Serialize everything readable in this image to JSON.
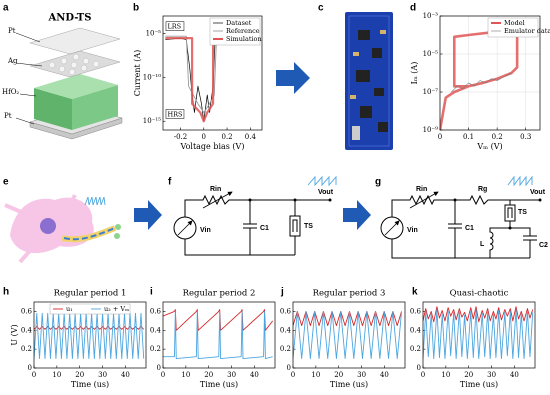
{
  "panel_labels": [
    "a",
    "b",
    "c",
    "d",
    "e",
    "f",
    "g",
    "h",
    "i",
    "j",
    "k"
  ],
  "a": {
    "title": "AND-TS",
    "layers": [
      "Pt",
      "Ag",
      "HfO₂",
      "Pt"
    ]
  },
  "f": {
    "labels": [
      "Rin",
      "Vin",
      "C1",
      "TS",
      "Vout"
    ]
  },
  "g": {
    "labels": [
      "Rin",
      "Rg",
      "Vin",
      "C1",
      "TS",
      "L",
      "C2",
      "Vout"
    ]
  },
  "chart_data": [
    {
      "type": "line",
      "log_y": true,
      "x_label": "Voltage bias (V)",
      "y_label": "Current (A)",
      "xlim": [
        -0.35,
        0.5
      ],
      "xticks": [
        -0.2,
        0,
        0.2,
        0.4
      ],
      "ylim": [
        1e-16,
        0.001
      ],
      "yticks": [
        {
          "value": 1e-05,
          "label": "10⁻⁵"
        },
        {
          "value": 1e-10,
          "label": "10⁻¹⁰"
        },
        {
          "value": 1e-15,
          "label": "10⁻¹⁵"
        }
      ],
      "annotations": [
        "LRS",
        "HRS"
      ],
      "legend": "upper right",
      "grid": false,
      "series": [
        {
          "name": "Dataset",
          "color": "#000000",
          "x": [
            -0.33,
            -0.2,
            -0.15,
            -0.12,
            -0.1,
            -0.08,
            -0.05,
            -0.02,
            0,
            0.03,
            0.05,
            0.08,
            0.1,
            0.2,
            0.45
          ],
          "values": [
            2e-06,
            3e-06,
            2e-06,
            1e-09,
            1e-12,
            1e-14,
            1e-11,
            1e-13,
            1e-15,
            1e-12,
            1e-14,
            1e-11,
            1e-05,
            1e-05,
            1e-05
          ]
        },
        {
          "name": "Reference",
          "color": "#999999",
          "x": [
            -0.33,
            -0.15,
            -0.13,
            -0.05,
            0,
            0.05,
            0.09,
            0.11,
            0.45
          ],
          "values": [
            5e-06,
            5e-06,
            1e-11,
            1e-13,
            1e-14,
            1e-13,
            1e-12,
            5e-06,
            5e-06
          ]
        },
        {
          "name": "Simulation",
          "color": "#e05555",
          "x": [
            -0.33,
            -0.1,
            -0.1,
            -0.03,
            0,
            0.03,
            0.08,
            0.08,
            0.48
          ],
          "values": [
            3e-06,
            3e-06,
            1e-13,
            1e-14,
            1e-15,
            1e-14,
            1e-13,
            1e-05,
            1e-05
          ]
        }
      ]
    },
    {
      "type": "line",
      "log_y": true,
      "x_label": "Vₘ (V)",
      "y_label": "Iₘ (A)",
      "xlim": [
        0,
        0.35
      ],
      "xticks": [
        0,
        0.1,
        0.2,
        0.3
      ],
      "ylim": [
        1e-09,
        0.001
      ],
      "yticks": [
        {
          "value": 1e-09,
          "label": "10⁻⁹"
        },
        {
          "value": 1e-07,
          "label": "10⁻⁷"
        },
        {
          "value": 1e-05,
          "label": "10⁻⁵"
        },
        {
          "value": 0.001,
          "label": "10⁻³"
        }
      ],
      "legend": "upper right",
      "grid": true,
      "series": [
        {
          "name": "Model",
          "color": "#e05555",
          "x": [
            0,
            0.02,
            0.05,
            0.1,
            0.15,
            0.2,
            0.25,
            0.27,
            0.27,
            0.3,
            0.32,
            0.3,
            0.2,
            0.1,
            0.05,
            0.05,
            0.1
          ],
          "values": [
            1e-09,
            5e-08,
            1e-07,
            2e-07,
            3e-07,
            5e-07,
            1e-06,
            2e-06,
            0.0001,
            0.0002,
            0.0003,
            0.00025,
            0.00015,
            0.0001,
            8e-05,
            2e-07,
            2e-07
          ]
        },
        {
          "name": "Emulator data",
          "color": "#777777",
          "x": [
            0.04,
            0.06,
            0.08,
            0.1,
            0.12,
            0.14,
            0.16,
            0.18,
            0.2,
            0.22,
            0.25
          ],
          "values": [
            1e-07,
            2e-07,
            1.5e-07,
            3e-07,
            2e-07,
            4e-07,
            3e-07,
            5e-07,
            4e-07,
            6e-07,
            1e-06
          ]
        }
      ]
    },
    {
      "type": "line",
      "title": "Regular period 1",
      "x_label": "Time (us)",
      "y_label": "U (V)",
      "xlim": [
        0,
        49
      ],
      "xticks": [
        0,
        10,
        20,
        30,
        40
      ],
      "ylim": [
        0,
        0.7
      ],
      "yticks": [
        0,
        0.2,
        0.4,
        0.6
      ],
      "legend": "upper center",
      "grid": false,
      "x": [
        0,
        1.2,
        2.4,
        3.6,
        4.8,
        6,
        7.2,
        8.4,
        9.6,
        10.8,
        12,
        13.2,
        14.4,
        15.6,
        16.8,
        18,
        19.2,
        20.4,
        21.6,
        22.8,
        24,
        25.2,
        26.4,
        27.6,
        28.8,
        30,
        31.2,
        32.4,
        33.6,
        34.8,
        36,
        37.2,
        38.4,
        39.6,
        40.8,
        42,
        43.2,
        44.4,
        45.6,
        46.8,
        48
      ],
      "series": [
        {
          "name": "u₁",
          "color": "#d62728",
          "values": [
            0.41,
            0.44,
            0.41,
            0.44,
            0.41,
            0.44,
            0.41,
            0.44,
            0.41,
            0.44,
            0.41,
            0.44,
            0.41,
            0.44,
            0.41,
            0.44,
            0.41,
            0.44,
            0.41,
            0.44,
            0.41,
            0.44,
            0.41,
            0.44,
            0.41,
            0.44,
            0.41,
            0.44,
            0.41,
            0.44,
            0.41,
            0.44,
            0.41,
            0.44,
            0.41,
            0.44,
            0.41,
            0.44,
            0.41,
            0.44,
            0.41
          ]
        },
        {
          "name": "u₂ + Vₘ",
          "color": "#4da6e0",
          "values": [
            0.1,
            0.58,
            0.1,
            0.58,
            0.1,
            0.58,
            0.1,
            0.58,
            0.1,
            0.58,
            0.1,
            0.58,
            0.1,
            0.58,
            0.1,
            0.58,
            0.1,
            0.58,
            0.1,
            0.58,
            0.1,
            0.58,
            0.1,
            0.58,
            0.1,
            0.58,
            0.1,
            0.58,
            0.1,
            0.58,
            0.1,
            0.58,
            0.1,
            0.58,
            0.1,
            0.58,
            0.1,
            0.58,
            0.1,
            0.58,
            0.1
          ]
        }
      ]
    },
    {
      "type": "line",
      "title": "Regular period 2",
      "x_label": "Time (us)",
      "xlim": [
        0,
        49
      ],
      "xticks": [
        0,
        10,
        20,
        30,
        40
      ],
      "ylim": [
        0,
        0.7
      ],
      "yticks": [
        0,
        0.2,
        0.4,
        0.6
      ],
      "grid": false,
      "x": [
        0,
        5,
        5.4,
        5.8,
        14.6,
        15,
        15.4,
        24.4,
        24.8,
        25.2,
        34.2,
        34.6,
        35,
        44,
        44.4,
        44.8,
        48
      ],
      "series": [
        {
          "color": "#d62728",
          "values": [
            0.55,
            0.6,
            0.62,
            0.4,
            0.6,
            0.62,
            0.4,
            0.6,
            0.62,
            0.4,
            0.6,
            0.62,
            0.4,
            0.6,
            0.62,
            0.4,
            0.5
          ]
        },
        {
          "color": "#4da6e0",
          "values": [
            0.12,
            0.12,
            0.6,
            0.1,
            0.12,
            0.6,
            0.1,
            0.12,
            0.6,
            0.1,
            0.12,
            0.6,
            0.1,
            0.12,
            0.6,
            0.1,
            0.12
          ]
        }
      ]
    },
    {
      "type": "line",
      "title": "Regular period 3",
      "x_label": "Time (us)",
      "xlim": [
        0,
        49
      ],
      "xticks": [
        0,
        10,
        20,
        30,
        40
      ],
      "ylim": [
        0,
        0.7
      ],
      "yticks": [
        0,
        0.2,
        0.4,
        0.6
      ],
      "grid": false,
      "x": [
        0,
        1.9,
        3.8,
        5.7,
        7.6,
        9.5,
        11.4,
        13.3,
        15.2,
        17.1,
        19,
        20.9,
        22.8,
        24.7,
        26.6,
        28.5,
        30.4,
        32.3,
        34.2,
        36.1,
        38,
        39.9,
        41.8,
        43.7,
        45.6,
        47.5
      ],
      "series": [
        {
          "color": "#d62728",
          "values": [
            0.45,
            0.6,
            0.45,
            0.6,
            0.45,
            0.6,
            0.45,
            0.6,
            0.45,
            0.6,
            0.45,
            0.6,
            0.45,
            0.6,
            0.45,
            0.6,
            0.45,
            0.6,
            0.45,
            0.6,
            0.45,
            0.6,
            0.45,
            0.6,
            0.45,
            0.6
          ]
        },
        {
          "color": "#4da6e0",
          "values": [
            0.1,
            0.6,
            0.1,
            0.6,
            0.1,
            0.6,
            0.1,
            0.6,
            0.1,
            0.6,
            0.1,
            0.6,
            0.1,
            0.6,
            0.1,
            0.6,
            0.1,
            0.6,
            0.1,
            0.6,
            0.1,
            0.6,
            0.1,
            0.6,
            0.1,
            0.6
          ]
        }
      ]
    },
    {
      "type": "line",
      "title": "Quasi-chaotic",
      "x_label": "Time (us)",
      "xlim": [
        0,
        49
      ],
      "xticks": [
        0,
        10,
        20,
        30,
        40
      ],
      "ylim": [
        0,
        0.7
      ],
      "yticks": [
        0,
        0.2,
        0.4,
        0.6
      ],
      "grid": false,
      "x": [
        0,
        1.2,
        2.3,
        3.6,
        4.7,
        6.1,
        7.2,
        8.4,
        9.6,
        11,
        12.1,
        13.4,
        14.5,
        15.9,
        17,
        18.2,
        19.4,
        20.9,
        22,
        23.2,
        24.4,
        25.9,
        27,
        28.3,
        29.4,
        30.8,
        31.9,
        33.1,
        34.3,
        35.8,
        36.9,
        38.2,
        39.3,
        40.7,
        41.8,
        43,
        44.2,
        45.7,
        46.8,
        48
      ],
      "series": [
        {
          "color": "#d62728",
          "values": [
            0.5,
            0.63,
            0.52,
            0.6,
            0.49,
            0.65,
            0.53,
            0.61,
            0.5,
            0.64,
            0.55,
            0.62,
            0.51,
            0.63,
            0.54,
            0.59,
            0.5,
            0.64,
            0.52,
            0.65,
            0.49,
            0.61,
            0.53,
            0.63,
            0.5,
            0.6,
            0.52,
            0.64,
            0.51,
            0.62,
            0.55,
            0.63,
            0.5,
            0.65,
            0.52,
            0.6,
            0.5,
            0.63,
            0.53,
            0.62
          ]
        },
        {
          "color": "#4da6e0",
          "values": [
            0.1,
            0.6,
            0.12,
            0.58,
            0.1,
            0.62,
            0.11,
            0.57,
            0.1,
            0.6,
            0.13,
            0.59,
            0.1,
            0.61,
            0.12,
            0.56,
            0.1,
            0.6,
            0.11,
            0.62,
            0.1,
            0.58,
            0.12,
            0.6,
            0.1,
            0.57,
            0.11,
            0.61,
            0.1,
            0.59,
            0.13,
            0.6,
            0.1,
            0.62,
            0.11,
            0.58,
            0.1,
            0.6,
            0.12,
            0.59
          ]
        }
      ]
    }
  ]
}
